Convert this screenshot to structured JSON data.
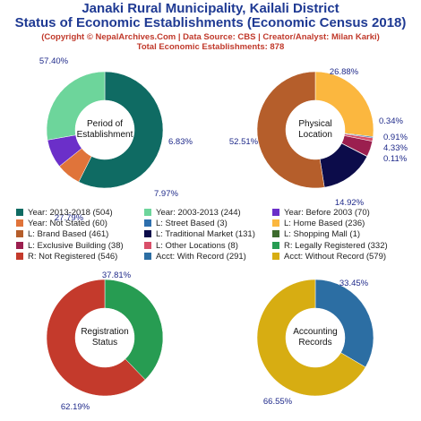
{
  "title_line1": "Janaki Rural Municipality, Kailali District",
  "title_line2": "Status of Economic Establishments (Economic Census 2018)",
  "subtitle_line1": "(Copyright © NepalArchives.Com | Data Source: CBS | Creator/Analyst: Milan Karki)",
  "subtitle_line2": "Total Economic Establishments: 878",
  "chart_data": [
    {
      "type": "pie",
      "center_label": [
        "Period of",
        "Establishment"
      ],
      "slices": [
        {
          "label": "Year: 2013-2018",
          "value": 504,
          "percent": "57.40%",
          "color": "#0f6b63"
        },
        {
          "label": "Year: Not Stated",
          "value": 60,
          "percent": "6.83%",
          "color": "#e0743a"
        },
        {
          "label": "Year: Before 2003",
          "value": 70,
          "percent": "7.97%",
          "color": "#6b2fc9"
        },
        {
          "label": "Year: 2003-2013",
          "value": 244,
          "percent": "27.79%",
          "color": "#6dd59b"
        }
      ]
    },
    {
      "type": "pie",
      "center_label": [
        "Physical",
        "Location"
      ],
      "slices": [
        {
          "label": "L: Home Based",
          "value": 236,
          "percent": "26.88%",
          "color": "#fbb73f"
        },
        {
          "label": "L: Street Based",
          "value": 3,
          "percent": "0.34%",
          "color": "#2e6fad"
        },
        {
          "label": "L: Other Locations",
          "value": 8,
          "percent": "0.91%",
          "color": "#d94f6a"
        },
        {
          "label": "L: Exclusive Building",
          "value": 38,
          "percent": "4.33%",
          "color": "#9b1f4f"
        },
        {
          "label": "L: Shopping Mall",
          "value": 1,
          "percent": "0.11%",
          "color": "#3d6b2e"
        },
        {
          "label": "L: Traditional Market",
          "value": 131,
          "percent": "14.92%",
          "color": "#0c0c4a"
        },
        {
          "label": "L: Brand Based",
          "value": 461,
          "percent": "52.51%",
          "color": "#b55e2b"
        }
      ]
    },
    {
      "type": "pie",
      "center_label": [
        "Registration",
        "Status"
      ],
      "slices": [
        {
          "label": "R: Legally Registered",
          "value": 332,
          "percent": "37.81%",
          "color": "#279c52"
        },
        {
          "label": "R: Not Registered",
          "value": 546,
          "percent": "62.19%",
          "color": "#c43a2c"
        }
      ]
    },
    {
      "type": "pie",
      "center_label": [
        "Accounting",
        "Records"
      ],
      "slices": [
        {
          "label": "Acct: With Record",
          "value": 291,
          "percent": "33.45%",
          "color": "#2c6ea3"
        },
        {
          "label": "Acct: Without Record",
          "value": 579,
          "percent": "66.55%",
          "color": "#d7ad12"
        }
      ]
    }
  ],
  "legend": [
    {
      "text": "Year: 2013-2018 (504)",
      "color": "#0f6b63"
    },
    {
      "text": "Year: 2003-2013 (244)",
      "color": "#6dd59b"
    },
    {
      "text": "Year: Before 2003 (70)",
      "color": "#6b2fc9"
    },
    {
      "text": "Year: Not Stated (60)",
      "color": "#e0743a"
    },
    {
      "text": "L: Street Based (3)",
      "color": "#2e6fad"
    },
    {
      "text": "L: Home Based (236)",
      "color": "#fbb73f"
    },
    {
      "text": "L: Brand Based (461)",
      "color": "#b55e2b"
    },
    {
      "text": "L: Traditional Market (131)",
      "color": "#0c0c4a"
    },
    {
      "text": "L: Shopping Mall (1)",
      "color": "#3d6b2e"
    },
    {
      "text": "L: Exclusive Building (38)",
      "color": "#9b1f4f"
    },
    {
      "text": "L: Other Locations (8)",
      "color": "#d94f6a"
    },
    {
      "text": "R: Legally Registered (332)",
      "color": "#279c52"
    },
    {
      "text": "R: Not Registered (546)",
      "color": "#c43a2c"
    },
    {
      "text": "Acct: With Record (291)",
      "color": "#2c6ea3"
    },
    {
      "text": "Acct: Without Record (579)",
      "color": "#d7ad12"
    }
  ]
}
